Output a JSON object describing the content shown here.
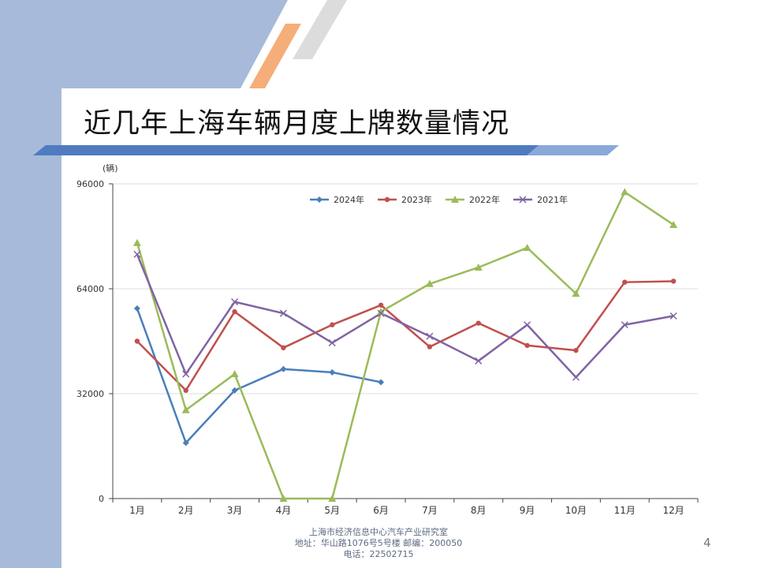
{
  "slide": {
    "title": "近几年上海车辆月度上牌数量情况",
    "page_number": "4",
    "footer_lines": [
      "上海市经济信息中心汽车产业研究室",
      "地址：华山路1076号5号楼   邮编：200050",
      "电话：22502715"
    ]
  },
  "colors": {
    "sidebar": "#a7bad9",
    "title_bar": "#4f7bc0",
    "stripe_orange": "#f5ad7a",
    "stripe_gray": "#dcdcdc",
    "grid": "#dddddd",
    "axis": "#444444"
  },
  "chart_data": {
    "type": "line",
    "unit_label": "(辆)",
    "categories": [
      "1月",
      "2月",
      "3月",
      "4月",
      "5月",
      "6月",
      "7月",
      "8月",
      "9月",
      "10月",
      "11月",
      "12月"
    ],
    "ylim": [
      0,
      96000
    ],
    "yticks": [
      0,
      32000,
      64000,
      96000
    ],
    "ytick_labels": [
      "0",
      "32000",
      "64000",
      "96000"
    ],
    "grid": true,
    "legend_position": "top-right",
    "series": [
      {
        "name": "2024年",
        "color": "#4a7ebb",
        "marker": "diamond",
        "values": [
          58000,
          17000,
          33000,
          39500,
          38500,
          35500,
          null,
          null,
          null,
          null,
          null,
          null
        ]
      },
      {
        "name": "2023年",
        "color": "#c0504d",
        "marker": "circle",
        "values": [
          48000,
          33000,
          57000,
          46000,
          53000,
          59000,
          46300,
          53500,
          46700,
          45200,
          66000,
          66300
        ]
      },
      {
        "name": "2022年",
        "color": "#9bbb59",
        "marker": "triangle",
        "values": [
          78000,
          27000,
          38000,
          0,
          0,
          57000,
          65500,
          70500,
          76500,
          62500,
          93500,
          83500
        ]
      },
      {
        "name": "2021年",
        "color": "#8064a2",
        "marker": "x",
        "values": [
          74500,
          38000,
          60000,
          56500,
          47500,
          56500,
          49500,
          42000,
          53000,
          37000,
          53000,
          55700
        ]
      }
    ]
  }
}
